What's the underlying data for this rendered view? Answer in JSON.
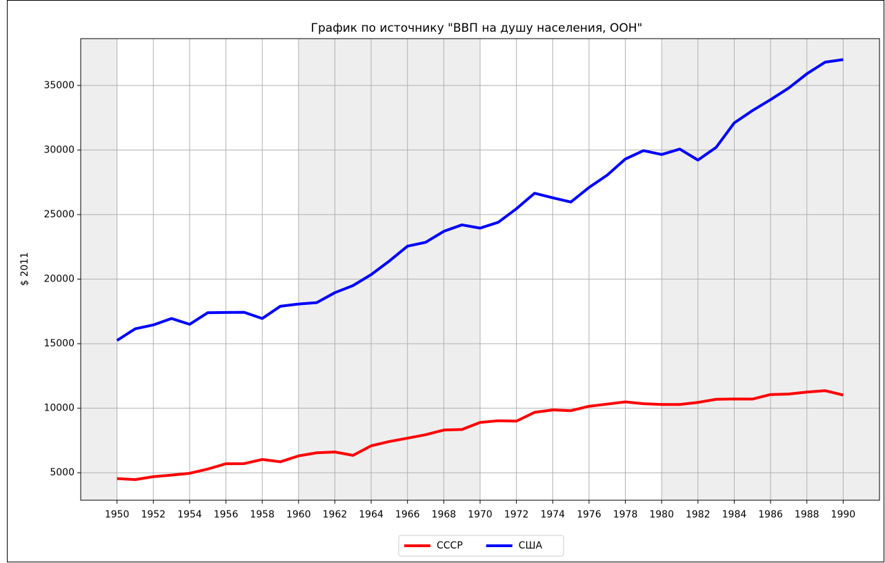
{
  "chart_data": {
    "type": "line",
    "title": "График по источнику \"ВВП на душу населения, ООН\"",
    "y_label": "$ 2011",
    "x": [
      1950,
      1951,
      1952,
      1953,
      1954,
      1955,
      1956,
      1957,
      1958,
      1959,
      1960,
      1961,
      1962,
      1963,
      1964,
      1965,
      1966,
      1967,
      1968,
      1969,
      1970,
      1971,
      1972,
      1973,
      1974,
      1975,
      1976,
      1977,
      1978,
      1979,
      1980,
      1981,
      1982,
      1983,
      1984,
      1985,
      1986,
      1987,
      1988,
      1989,
      1990
    ],
    "series": [
      {
        "name": "СССР",
        "color": "#ff0000",
        "values": [
          4550,
          4470,
          4700,
          4820,
          4960,
          5290,
          5700,
          5710,
          6030,
          5850,
          6310,
          6550,
          6610,
          6350,
          7090,
          7420,
          7680,
          7950,
          8310,
          8350,
          8900,
          9030,
          9000,
          9680,
          9870,
          9810,
          10150,
          10320,
          10490,
          10350,
          10290,
          10290,
          10450,
          10690,
          10720,
          10710,
          11060,
          11100,
          11250,
          11360,
          11020
        ]
      },
      {
        "name": "США",
        "color": "#0000ff",
        "values": [
          15250,
          16150,
          16450,
          16950,
          16500,
          17400,
          17420,
          17430,
          16950,
          17900,
          18070,
          18180,
          18950,
          19500,
          20350,
          21400,
          22550,
          22850,
          23700,
          24200,
          23950,
          24400,
          25450,
          26650,
          26300,
          25970,
          27100,
          28050,
          29300,
          29950,
          29650,
          30070,
          29220,
          30200,
          32100,
          33050,
          33900,
          34800,
          35900,
          36800,
          37000
        ]
      }
    ],
    "xlim": [
      1948,
      1992
    ],
    "xticks": [
      1950,
      1952,
      1954,
      1956,
      1958,
      1960,
      1962,
      1964,
      1966,
      1968,
      1970,
      1972,
      1974,
      1976,
      1978,
      1980,
      1982,
      1984,
      1986,
      1988,
      1990
    ],
    "ylim": [
      2875,
      38625
    ],
    "yticks": [
      5000,
      10000,
      15000,
      20000,
      25000,
      30000,
      35000
    ],
    "grid": true,
    "background_color": "#eeeeee",
    "white_spans": [
      [
        1950,
        1960
      ],
      [
        1970,
        1980
      ]
    ],
    "legend": "lower center"
  }
}
